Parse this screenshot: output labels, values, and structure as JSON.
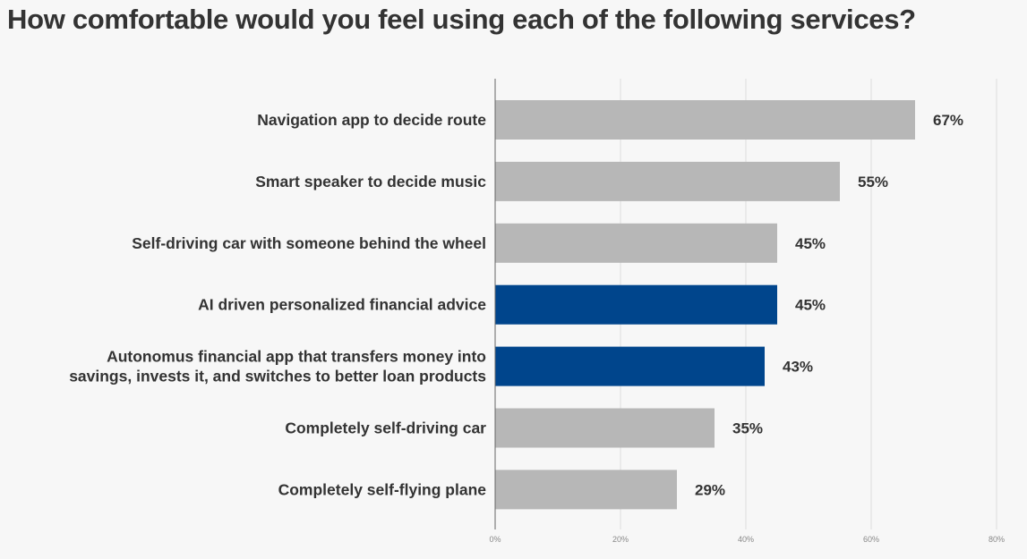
{
  "title": "How comfortable would you feel using each of the following services?",
  "colors": {
    "background": "#f7f7f7",
    "bar_default": "#b7b7b7",
    "bar_highlight": "#00458c",
    "grid": "#dddddd",
    "axis": "#666666",
    "text": "#333333"
  },
  "chart_data": {
    "type": "bar",
    "orientation": "horizontal",
    "title": "How comfortable would you feel using each of the following services?",
    "xlabel": "",
    "ylabel": "",
    "xlim": [
      0,
      80
    ],
    "grid": true,
    "legend": "none",
    "categories": [
      [
        "Navigation app to decide route"
      ],
      [
        "Smart speaker to decide music"
      ],
      [
        "Self-driving car with someone behind the wheel"
      ],
      [
        "AI driven personalized financial advice"
      ],
      [
        "Autonomus financial app that transfers money into",
        "savings, invests it, and switches to better loan products"
      ],
      [
        "Completely self-driving car"
      ],
      [
        "Completely self-flying plane"
      ]
    ],
    "values": [
      67,
      55,
      45,
      45,
      43,
      35,
      29
    ],
    "value_labels": [
      "67%",
      "55%",
      "45%",
      "45%",
      "43%",
      "35%",
      "29%"
    ],
    "highlighted": [
      false,
      false,
      false,
      true,
      true,
      false,
      false
    ],
    "ticks": [
      0,
      20,
      40,
      60,
      80
    ],
    "tick_labels": [
      "0%",
      "20%",
      "40%",
      "60%",
      "80%"
    ]
  }
}
